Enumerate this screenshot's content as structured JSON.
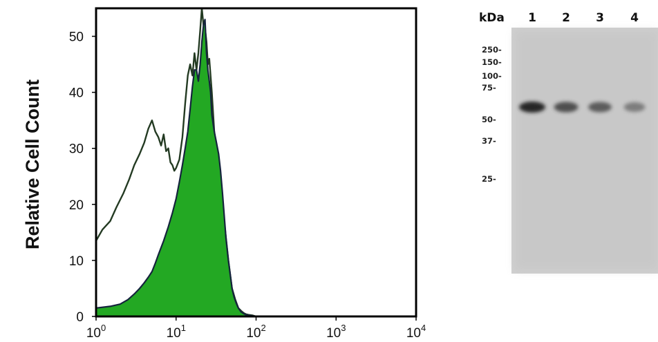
{
  "flow_chart": {
    "chart_data": {
      "type": "area",
      "ylabel": "Relative Cell Count",
      "xscale": "log",
      "xlim": [
        1,
        10000
      ],
      "ylim": [
        0,
        55
      ],
      "y_ticks": [
        "0",
        "10",
        "20",
        "30",
        "40",
        "50"
      ],
      "x_ticks": [
        {
          "base": "10",
          "exp": "0"
        },
        {
          "base": "10",
          "exp": "1"
        },
        {
          "base": "10",
          "exp": "2"
        },
        {
          "base": "10",
          "exp": "3"
        },
        {
          "base": "10",
          "exp": "4"
        }
      ],
      "series": [
        {
          "style": "outline",
          "stroke": "#233a22",
          "x": [
            1,
            1.2,
            1.5,
            1.8,
            2.2,
            2.6,
            3.0,
            3.5,
            4.0,
            4.5,
            5.0,
            5.5,
            6.0,
            6.5,
            7.0,
            7.5,
            8.0,
            8.5,
            9.0,
            9.5,
            10,
            11,
            12,
            13,
            14,
            15,
            16,
            17,
            18,
            19,
            20,
            21,
            22,
            23,
            24,
            25,
            26,
            28,
            30,
            33,
            36,
            40,
            45,
            50,
            55,
            60,
            65,
            70,
            75,
            80,
            90,
            100,
            1000,
            10000
          ],
          "y": [
            13.5,
            15.5,
            17,
            19.5,
            22,
            24.5,
            27,
            29,
            31,
            33.5,
            35,
            33,
            32,
            30.5,
            32.5,
            29.5,
            30,
            27.5,
            27,
            26,
            26.5,
            28,
            32,
            38,
            43,
            45,
            43,
            47,
            44,
            47,
            51,
            55,
            52,
            51.5,
            49,
            45,
            46,
            40,
            33,
            28,
            23,
            17,
            10,
            5,
            3,
            1.5,
            1,
            0.6,
            0.4,
            0.3,
            0.2,
            0,
            0,
            0
          ]
        },
        {
          "style": "filled",
          "fill": "#23a823",
          "stroke": "#15233d",
          "x": [
            1,
            1.5,
            2,
            2.5,
            3,
            3.5,
            4,
            4.5,
            5,
            5.5,
            6,
            7,
            8,
            9,
            10,
            11,
            12,
            13,
            14,
            15,
            16,
            17,
            18,
            19,
            20,
            21,
            22,
            23,
            24,
            25,
            26,
            27,
            28,
            30,
            32,
            34,
            36,
            38,
            40,
            42,
            45,
            48,
            50,
            53,
            56,
            60,
            65,
            70,
            75,
            80,
            90,
            100,
            1000,
            10000
          ],
          "y": [
            1.5,
            1.8,
            2.2,
            3,
            4,
            5,
            6,
            7,
            8,
            9.5,
            11,
            13.5,
            16,
            18.5,
            21,
            24,
            27,
            30,
            33,
            37,
            41,
            44,
            44,
            42,
            45,
            49,
            52,
            53,
            47,
            44,
            42,
            40,
            36,
            33,
            31,
            29,
            26,
            22,
            18,
            14,
            10,
            7,
            5,
            3.5,
            2.5,
            1.5,
            0.8,
            0.5,
            0.3,
            0.2,
            0.1,
            0,
            0,
            0
          ]
        }
      ]
    }
  },
  "blot": {
    "header_label": "kDa",
    "lanes": [
      "1",
      "2",
      "3",
      "4"
    ],
    "markers": [
      "250-",
      "150-",
      "100-",
      "75-",
      "50-",
      "37-",
      "25-"
    ],
    "markers_kda": [
      250,
      150,
      100,
      75,
      50,
      37,
      25
    ],
    "band": {
      "kda": 55,
      "lane_intensity": [
        1.0,
        0.78,
        0.7,
        0.48
      ]
    }
  }
}
